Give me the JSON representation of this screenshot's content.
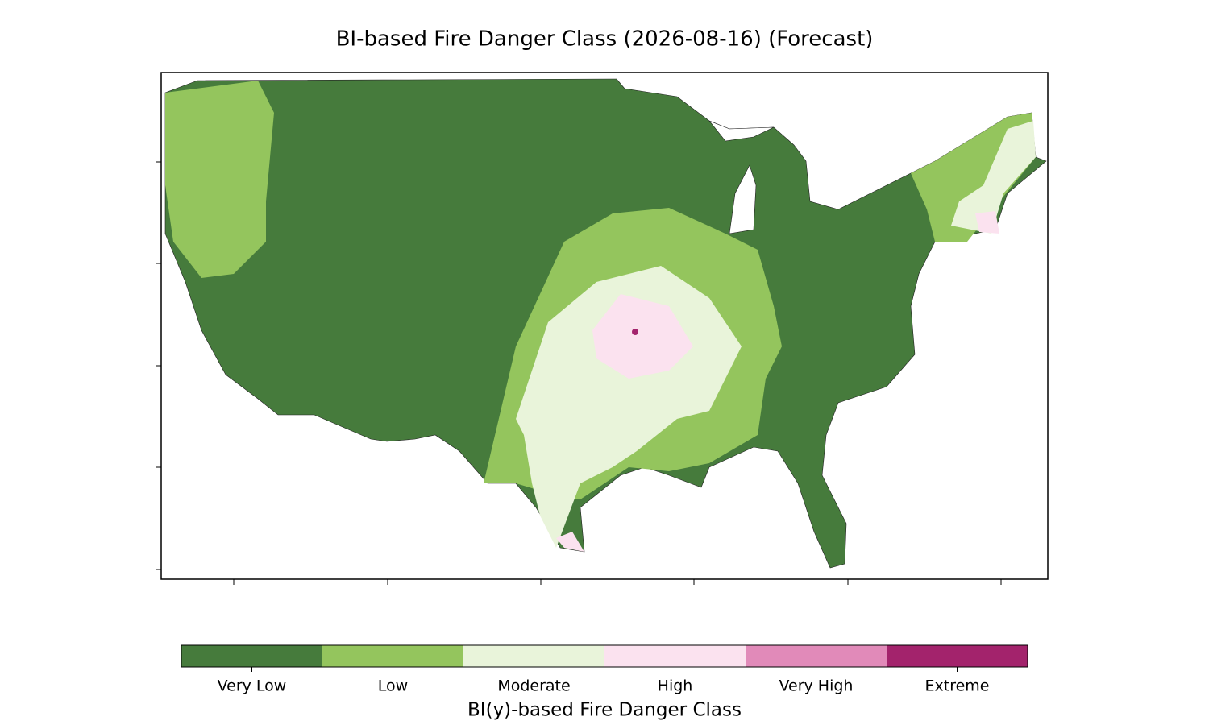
{
  "title": "BI-based Fire Danger Class (2026-08-16) (Forecast)",
  "colorbar": {
    "label": "BI(y)-based Fire Danger Class",
    "classes": [
      {
        "name": "Very Low",
        "color": "#467b3c"
      },
      {
        "name": "Low",
        "color": "#94c55d"
      },
      {
        "name": "Moderate",
        "color": "#e9f4da"
      },
      {
        "name": "High",
        "color": "#fbe2ef"
      },
      {
        "name": "Very High",
        "color": "#e18ab9"
      },
      {
        "name": "Extreme",
        "color": "#a3236c"
      }
    ]
  }
}
